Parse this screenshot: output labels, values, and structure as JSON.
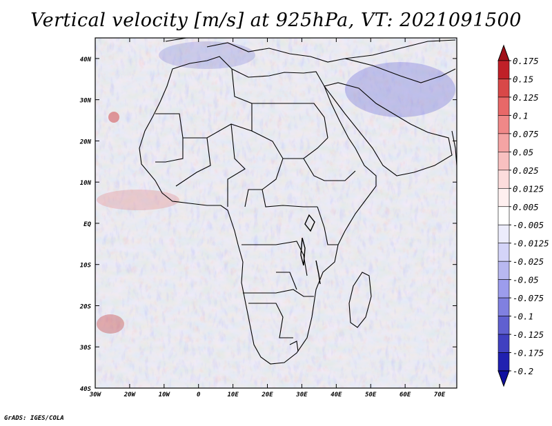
{
  "title": "Vertical velocity [m/s] at 925hPa, VT: 2021091500",
  "credit": "GrADS: IGES/COLA",
  "map": {
    "lat_ticks": [
      "40N",
      "30N",
      "20N",
      "10N",
      "EQ",
      "10S",
      "20S",
      "30S",
      "40S"
    ],
    "lon_ticks": [
      "30W",
      "20W",
      "10W",
      "0",
      "10E",
      "20E",
      "30E",
      "40E",
      "50E",
      "60E",
      "70E"
    ],
    "lon_range_deg": [
      -30,
      75
    ],
    "lat_range_deg": [
      -40,
      45
    ],
    "field": "vertical velocity",
    "level": "925hPa"
  },
  "colorbar": {
    "labels": [
      "0.175",
      "0.15",
      "0.125",
      "0.1",
      "0.075",
      "0.05",
      "0.025",
      "0.0125",
      "0.005",
      "-0.005",
      "-0.0125",
      "-0.025",
      "-0.05",
      "-0.075",
      "-0.1",
      "-0.125",
      "-0.175",
      "-0.2"
    ],
    "colors": [
      "#a01018",
      "#c02028",
      "#d84848",
      "#e86868",
      "#f08888",
      "#f4a4a4",
      "#f8c0c0",
      "#fcdcdc",
      "#fff0f0",
      "#ffffff",
      "#ececfc",
      "#d4d4f8",
      "#b8b8f0",
      "#9c9cec",
      "#8080e0",
      "#6060d0",
      "#4040c0",
      "#2020b0",
      "#1010a0"
    ]
  }
}
